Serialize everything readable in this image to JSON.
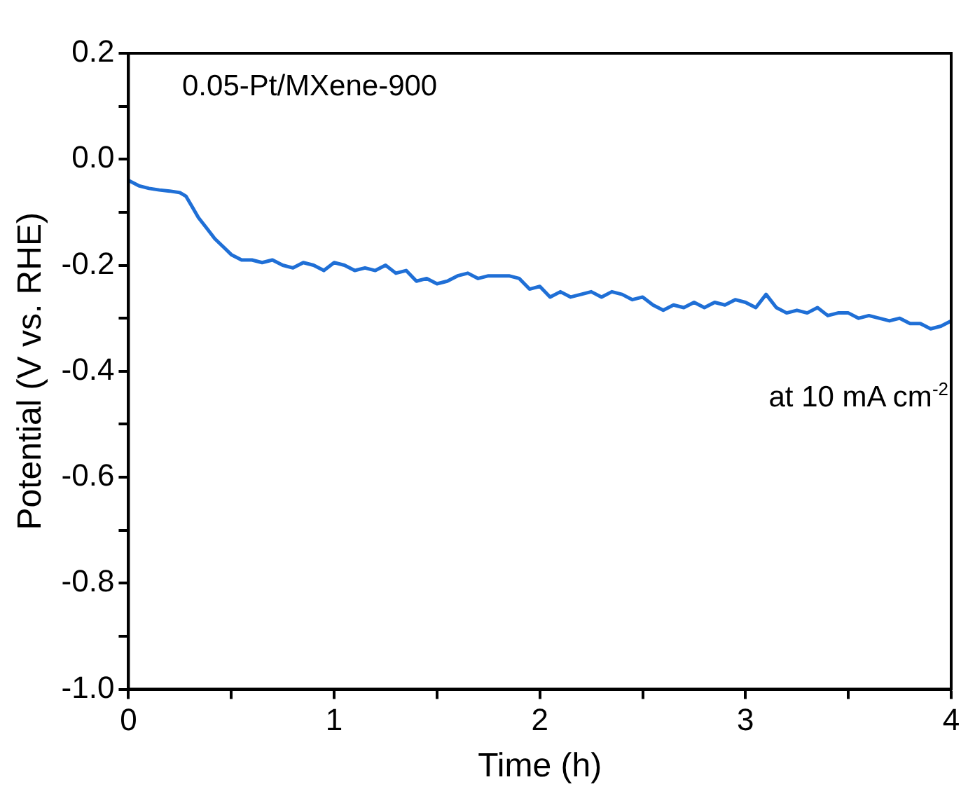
{
  "chart_data": {
    "type": "line",
    "xlabel": "Time (h)",
    "ylabel": "Potential (V vs. RHE)",
    "annotations": [
      "0.05-Pt/MXene-900",
      "at 10 mA cm$^{-2}$"
    ],
    "x": [
      0,
      0.05,
      0.1,
      0.15,
      0.2,
      0.25,
      0.28,
      0.31,
      0.34,
      0.38,
      0.42,
      0.46,
      0.5,
      0.55,
      0.6,
      0.65,
      0.7,
      0.75,
      0.8,
      0.85,
      0.9,
      0.95,
      1.0,
      1.05,
      1.1,
      1.15,
      1.2,
      1.25,
      1.3,
      1.35,
      1.4,
      1.45,
      1.5,
      1.55,
      1.6,
      1.65,
      1.7,
      1.75,
      1.8,
      1.85,
      1.9,
      1.95,
      2.0,
      2.05,
      2.1,
      2.15,
      2.2,
      2.25,
      2.3,
      2.35,
      2.4,
      2.45,
      2.5,
      2.55,
      2.6,
      2.65,
      2.7,
      2.75,
      2.8,
      2.85,
      2.9,
      2.95,
      3.0,
      3.05,
      3.1,
      3.15,
      3.2,
      3.25,
      3.3,
      3.35,
      3.4,
      3.45,
      3.5,
      3.55,
      3.6,
      3.65,
      3.7,
      3.75,
      3.8,
      3.85,
      3.9,
      3.95,
      4.0
    ],
    "series": [
      {
        "color": "#1f6fd6",
        "values": [
          -0.04,
          -0.05,
          -0.055,
          -0.058,
          -0.06,
          -0.063,
          -0.07,
          -0.09,
          -0.11,
          -0.13,
          -0.15,
          -0.165,
          -0.18,
          -0.19,
          -0.19,
          -0.195,
          -0.19,
          -0.2,
          -0.205,
          -0.195,
          -0.2,
          -0.21,
          -0.195,
          -0.2,
          -0.21,
          -0.205,
          -0.21,
          -0.2,
          -0.215,
          -0.21,
          -0.23,
          -0.225,
          -0.235,
          -0.23,
          -0.22,
          -0.215,
          -0.225,
          -0.22,
          -0.22,
          -0.22,
          -0.225,
          -0.245,
          -0.24,
          -0.26,
          -0.25,
          -0.26,
          -0.255,
          -0.25,
          -0.26,
          -0.25,
          -0.255,
          -0.265,
          -0.26,
          -0.275,
          -0.285,
          -0.275,
          -0.28,
          -0.27,
          -0.28,
          -0.27,
          -0.275,
          -0.265,
          -0.27,
          -0.28,
          -0.255,
          -0.28,
          -0.29,
          -0.285,
          -0.29,
          -0.28,
          -0.295,
          -0.29,
          -0.29,
          -0.3,
          -0.295,
          -0.3,
          -0.305,
          -0.3,
          -0.31,
          -0.31,
          -0.32,
          -0.315,
          -0.305
        ]
      }
    ],
    "xlim": [
      0,
      4
    ],
    "xticks": [
      0,
      {
        "value": 0.5,
        "label": null
      },
      1,
      {
        "value": 1.5,
        "label": null
      },
      2,
      {
        "value": 2.5,
        "label": null
      },
      3,
      {
        "value": 3.5,
        "label": null
      },
      4
    ],
    "ylim": [
      -1.0,
      0.2
    ],
    "yticks": [
      {
        "value": -1.0,
        "label": "-1.0"
      },
      {
        "value": -0.9,
        "label": null
      },
      -0.8,
      {
        "value": -0.7,
        "label": null
      },
      -0.6,
      {
        "value": -0.5,
        "label": null
      },
      -0.4,
      {
        "value": -0.3,
        "label": null
      },
      -0.2,
      {
        "value": -0.1,
        "label": null
      },
      {
        "value": 0,
        "label": "0.0"
      },
      {
        "value": 0.1,
        "label": null
      },
      0.2
    ],
    "grid": false,
    "legend": false,
    "marker": "none",
    "line_style": "solid"
  }
}
